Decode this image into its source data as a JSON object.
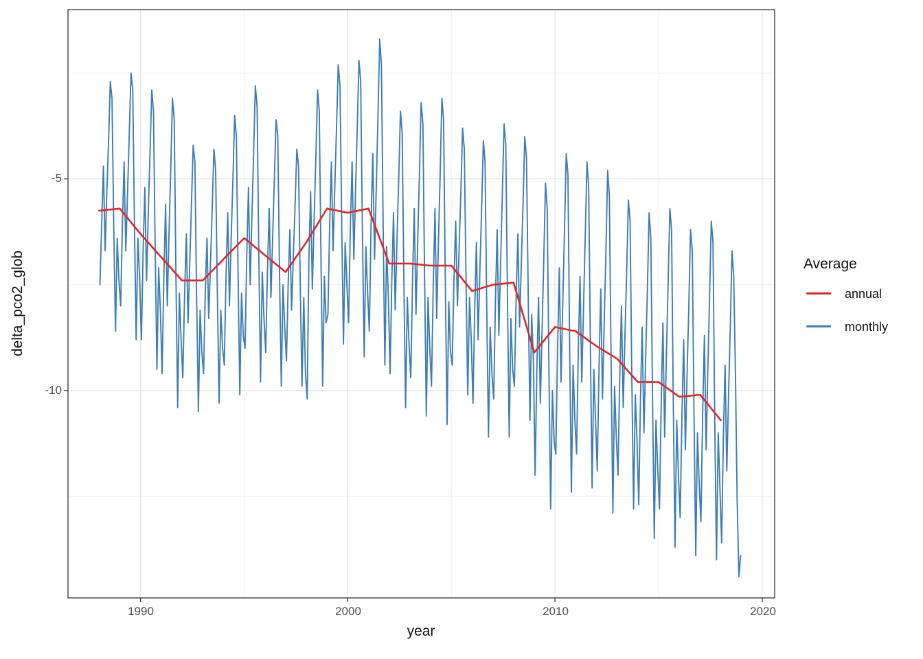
{
  "axes": {
    "x": {
      "title": "year",
      "tick_labels": [
        "1990",
        "2000",
        "2010",
        "2020"
      ]
    },
    "y": {
      "title": "delta_pco2_glob",
      "tick_labels": [
        "-5",
        "-10"
      ]
    }
  },
  "legend": {
    "title": "Average",
    "items": [
      {
        "label": "annual",
        "color": "#E0262B"
      },
      {
        "label": "monthly",
        "color": "#3D7EB3"
      }
    ]
  },
  "colors": {
    "annual_line": "#E0262B",
    "monthly_line": "#3D7EB3",
    "panel_border": "#333333",
    "grid_major": "#E3E3E3",
    "grid_minor": "#EFEFEF",
    "tick_mark": "#333333"
  },
  "chart_data": {
    "type": "line",
    "title": "",
    "xlabel": "year",
    "ylabel": "delta_pco2_glob",
    "xlim": [
      1986.5,
      2020.6
    ],
    "ylim": [
      -14.9,
      -1.0
    ],
    "x_ticks": [
      1990,
      2000,
      2010,
      2020
    ],
    "x_minor_ticks": [
      1995,
      2005,
      2015
    ],
    "y_ticks": [
      -5,
      -10
    ],
    "y_minor_ticks": [
      -2.5,
      -7.5,
      -12.5
    ],
    "grid": true,
    "legend_position": "right",
    "series": [
      {
        "name": "annual",
        "color": "#E0262B",
        "width": 2.6,
        "x_start": 1988,
        "x_step": 1,
        "values": [
          -5.75,
          -5.7,
          -6.3,
          -6.85,
          -7.4,
          -7.4,
          -6.9,
          -6.4,
          -6.8,
          -7.2,
          -6.5,
          -5.7,
          -5.8,
          -5.7,
          -7.0,
          -7.0,
          -7.05,
          -7.05,
          -7.65,
          -7.5,
          -7.45,
          -9.1,
          -8.5,
          -8.6,
          -8.95,
          -9.25,
          -9.8,
          -9.8,
          -10.15,
          -10.1,
          -10.7
        ]
      },
      {
        "name": "monthly",
        "color": "#3D7EB3",
        "width": 1.9,
        "x_start": 1988,
        "x_step": 0.08333,
        "monthly_by_year": [
          [
            -7.5,
            -6.1,
            -4.7,
            -6.7,
            -5.3,
            -4.1,
            -2.7,
            -3.1,
            -6.1,
            -8.6,
            -6.4,
            -7.4
          ],
          [
            -8.0,
            -6.1,
            -4.6,
            -6.7,
            -5.3,
            -3.9,
            -2.5,
            -2.9,
            -6.1,
            -8.8,
            -6.4,
            -7.4
          ],
          [
            -8.8,
            -6.7,
            -5.2,
            -7.4,
            -5.8,
            -4.4,
            -2.9,
            -3.4,
            -6.7,
            -9.5,
            -7.1,
            -8.1
          ],
          [
            -9.6,
            -7.3,
            -5.6,
            -8.0,
            -6.3,
            -4.8,
            -3.1,
            -3.6,
            -7.3,
            -10.4,
            -7.7,
            -8.8
          ],
          [
            -9.7,
            -7.8,
            -6.3,
            -8.4,
            -7.0,
            -5.6,
            -4.2,
            -4.6,
            -7.8,
            -10.5,
            -8.1,
            -9.1
          ],
          [
            -9.6,
            -7.7,
            -6.4,
            -8.3,
            -7.0,
            -5.7,
            -4.3,
            -4.8,
            -7.7,
            -10.3,
            -8.1,
            -9.0
          ],
          [
            -9.4,
            -7.3,
            -5.8,
            -8.0,
            -6.4,
            -5.0,
            -3.5,
            -4.0,
            -7.3,
            -10.1,
            -7.7,
            -8.7
          ],
          [
            -9.0,
            -6.8,
            -5.2,
            -7.5,
            -5.9,
            -4.4,
            -2.8,
            -3.3,
            -6.8,
            -9.8,
            -7.2,
            -8.3
          ],
          [
            -9.1,
            -7.2,
            -5.7,
            -7.8,
            -6.4,
            -5.0,
            -3.6,
            -4.0,
            -7.2,
            -9.9,
            -7.5,
            -8.5
          ],
          [
            -9.3,
            -7.5,
            -6.2,
            -8.1,
            -6.8,
            -5.6,
            -4.3,
            -4.7,
            -7.5,
            -9.9,
            -7.8,
            -9.6
          ],
          [
            -10.2,
            -6.9,
            -5.3,
            -7.6,
            -6.0,
            -4.5,
            -2.9,
            -3.4,
            -6.9,
            -9.9,
            -7.3,
            -8.4
          ],
          [
            -8.2,
            -6.1,
            -4.6,
            -6.7,
            -5.2,
            -3.8,
            -2.3,
            -2.8,
            -6.1,
            -8.9,
            -6.5,
            -7.5
          ],
          [
            -8.4,
            -6.2,
            -4.6,
            -6.9,
            -5.3,
            -3.8,
            -2.2,
            -2.7,
            -6.2,
            -9.2,
            -6.6,
            -7.7
          ],
          [
            -8.6,
            -6.1,
            -4.4,
            -6.9,
            -5.2,
            -3.5,
            -1.7,
            -2.3,
            -6.1,
            -9.4,
            -6.6,
            -7.8
          ],
          [
            -9.6,
            -7.4,
            -5.8,
            -8.1,
            -6.5,
            -5.0,
            -3.4,
            -3.9,
            -7.4,
            -10.4,
            -7.8,
            -8.9
          ],
          [
            -9.7,
            -7.4,
            -5.7,
            -8.2,
            -6.5,
            -4.9,
            -3.2,
            -3.7,
            -7.4,
            -10.6,
            -7.8,
            -9.0
          ],
          [
            -9.9,
            -7.5,
            -5.7,
            -8.3,
            -6.5,
            -4.9,
            -3.1,
            -3.6,
            -7.5,
            -10.8,
            -7.9,
            -9.1
          ],
          [
            -9.4,
            -7.4,
            -6.0,
            -8.0,
            -6.6,
            -5.3,
            -3.8,
            -4.3,
            -7.4,
            -10.1,
            -7.8,
            -8.8
          ],
          [
            -10.3,
            -8.1,
            -6.5,
            -8.8,
            -7.2,
            -5.7,
            -4.1,
            -4.6,
            -8.1,
            -11.1,
            -8.5,
            -9.6
          ],
          [
            -10.2,
            -7.9,
            -6.2,
            -8.7,
            -7.0,
            -5.4,
            -3.7,
            -4.2,
            -7.9,
            -11.1,
            -8.3,
            -9.5
          ],
          [
            -9.9,
            -7.8,
            -6.3,
            -8.5,
            -7.0,
            -5.6,
            -4.0,
            -4.5,
            -7.8,
            -10.7,
            -8.2,
            -9.3
          ],
          [
            -12.0,
            -9.5,
            -7.8,
            -10.3,
            -8.6,
            -6.9,
            -5.1,
            -5.7,
            -9.5,
            -12.8,
            -10.0,
            -11.2
          ],
          [
            -11.5,
            -9.0,
            -7.1,
            -9.8,
            -7.9,
            -6.2,
            -4.4,
            -4.9,
            -9.0,
            -12.4,
            -9.4,
            -10.7
          ],
          [
            -11.5,
            -9.0,
            -7.3,
            -9.8,
            -8.1,
            -6.4,
            -4.6,
            -5.2,
            -9.0,
            -12.3,
            -9.5,
            -10.7
          ],
          [
            -11.9,
            -9.4,
            -7.6,
            -10.2,
            -8.4,
            -6.7,
            -4.8,
            -5.4,
            -9.4,
            -12.9,
            -9.9,
            -11.1
          ],
          [
            -12.0,
            -9.7,
            -8.0,
            -10.4,
            -8.7,
            -7.2,
            -5.5,
            -6.0,
            -9.7,
            -12.8,
            -10.1,
            -11.2
          ],
          [
            -12.7,
            -10.2,
            -8.5,
            -11.0,
            -9.2,
            -7.6,
            -5.8,
            -6.4,
            -10.2,
            -13.5,
            -10.7,
            -11.9
          ],
          [
            -12.8,
            -10.3,
            -8.4,
            -11.1,
            -9.2,
            -7.5,
            -5.7,
            -6.2,
            -10.3,
            -13.7,
            -10.7,
            -12.0
          ],
          [
            -13.0,
            -10.6,
            -8.8,
            -11.4,
            -9.6,
            -8.0,
            -6.2,
            -6.7,
            -10.6,
            -13.9,
            -11.0,
            -12.2
          ],
          [
            -13.1,
            -10.6,
            -8.7,
            -11.4,
            -9.5,
            -7.8,
            -6.0,
            -6.5,
            -10.6,
            -14.0,
            -11.0,
            -12.3
          ],
          [
            -13.6,
            -11.1,
            -9.4,
            -11.9,
            -10.1,
            -8.5,
            -6.7,
            -7.3,
            -9.6,
            -12.6,
            -14.4,
            -13.9
          ]
        ]
      }
    ]
  }
}
